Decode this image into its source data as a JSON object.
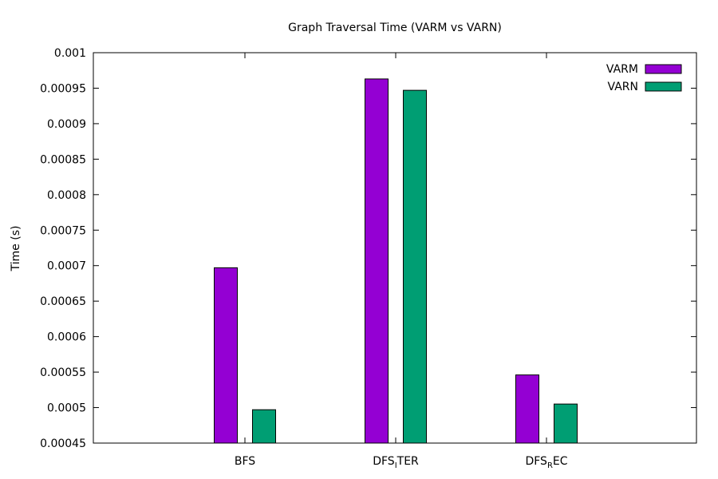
{
  "chart_data": {
    "type": "bar",
    "title": "Graph Traversal Time (VARM vs VARN)",
    "xlabel": "",
    "ylabel": "Time (s)",
    "ylim": [
      0.00045,
      0.001
    ],
    "yticks": [
      "0.00045",
      "0.0005",
      "0.00055",
      "0.0006",
      "0.00065",
      "0.0007",
      "0.00075",
      "0.0008",
      "0.00085",
      "0.0009",
      "0.00095",
      "0.001"
    ],
    "categories": [
      {
        "base": "DFS",
        "sub": "",
        "rest": "BFS",
        "plain": "BFS"
      },
      {
        "base": "DFS",
        "sub": "I",
        "rest": "TER",
        "plain": "DFS_ITER"
      },
      {
        "base": "DFS",
        "sub": "R",
        "rest": "EC",
        "plain": "DFS_REC"
      }
    ],
    "series": [
      {
        "name": "VARM",
        "color": "#9400d3",
        "values": [
          0.000697,
          0.000963,
          0.000546
        ]
      },
      {
        "name": "VARN",
        "color": "#009e73",
        "values": [
          0.000497,
          0.000947,
          0.000505
        ]
      }
    ],
    "legend": "top-right",
    "grid": false
  }
}
